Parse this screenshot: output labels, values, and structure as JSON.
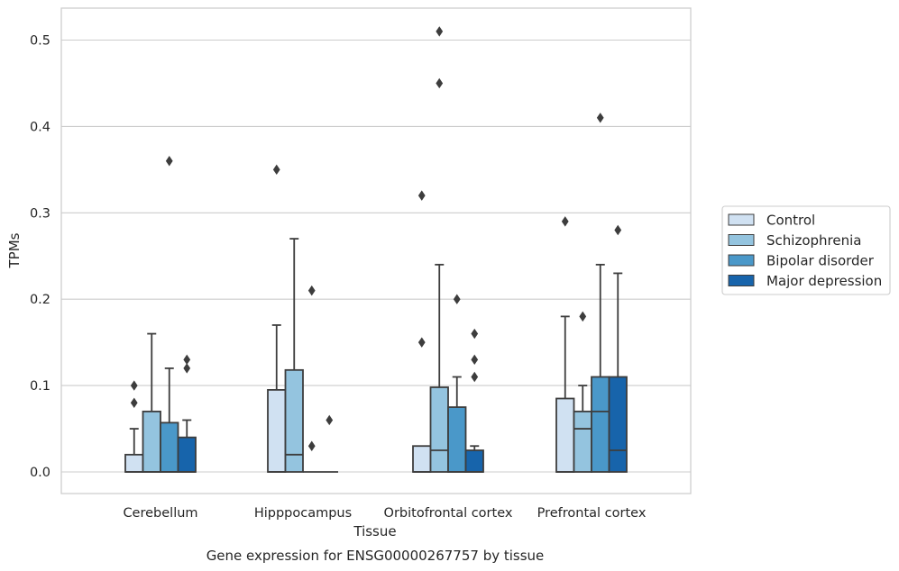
{
  "chart_data": {
    "type": "box",
    "caption": "Gene expression for ENSG00000267757 by tissue",
    "xlabel": "Tissue",
    "ylabel": "TPMs",
    "ylim": [
      -0.025,
      0.54
    ],
    "yticks": [
      0.0,
      0.1,
      0.2,
      0.3,
      0.4,
      0.5
    ],
    "ytick_labels": [
      "0.0",
      "0.1",
      "0.2",
      "0.3",
      "0.4",
      "0.5"
    ],
    "grid": "horizontal",
    "legend_position": "right",
    "categories": [
      "Cerebellum",
      "Hipppocampus",
      "Orbitofrontal cortex",
      "Prefrontal cortex"
    ],
    "series": [
      {
        "name": "Control",
        "color": "#d0e1f2",
        "boxes": [
          {
            "min": 0.0,
            "q1": 0.0,
            "median": 0.0,
            "q3": 0.02,
            "max": 0.05,
            "outliers": [
              0.08,
              0.1
            ]
          },
          {
            "min": 0.0,
            "q1": 0.0,
            "median": 0.0,
            "q3": 0.095,
            "max": 0.17,
            "outliers": [
              0.35
            ]
          },
          {
            "min": 0.0,
            "q1": 0.0,
            "median": 0.0,
            "q3": 0.03,
            "max": 0.03,
            "outliers": [
              0.15,
              0.32
            ]
          },
          {
            "min": 0.0,
            "q1": 0.0,
            "median": 0.0,
            "q3": 0.085,
            "max": 0.18,
            "outliers": [
              0.29
            ]
          }
        ]
      },
      {
        "name": "Schizophrenia",
        "color": "#94c4df",
        "boxes": [
          {
            "min": 0.0,
            "q1": 0.0,
            "median": 0.0,
            "q3": 0.07,
            "max": 0.16,
            "outliers": []
          },
          {
            "min": 0.0,
            "q1": 0.0,
            "median": 0.02,
            "q3": 0.118,
            "max": 0.27,
            "outliers": []
          },
          {
            "min": 0.0,
            "q1": 0.0,
            "median": 0.025,
            "q3": 0.098,
            "max": 0.24,
            "outliers": [
              0.45,
              0.51
            ]
          },
          {
            "min": 0.0,
            "q1": 0.0,
            "median": 0.05,
            "q3": 0.07,
            "max": 0.1,
            "outliers": [
              0.18
            ]
          }
        ]
      },
      {
        "name": "Bipolar disorder",
        "color": "#4a98c9",
        "boxes": [
          {
            "min": 0.0,
            "q1": 0.0,
            "median": 0.0,
            "q3": 0.057,
            "max": 0.12,
            "outliers": [
              0.36
            ]
          },
          {
            "min": 0.0,
            "q1": 0.0,
            "median": 0.0,
            "q3": 0.0,
            "max": 0.0,
            "outliers": [
              0.03,
              0.21
            ]
          },
          {
            "min": 0.0,
            "q1": 0.0,
            "median": 0.0,
            "q3": 0.075,
            "max": 0.11,
            "outliers": [
              0.2
            ]
          },
          {
            "min": 0.0,
            "q1": 0.0,
            "median": 0.07,
            "q3": 0.11,
            "max": 0.24,
            "outliers": [
              0.41
            ]
          }
        ]
      },
      {
        "name": "Major depression",
        "color": "#1764ab",
        "boxes": [
          {
            "min": 0.0,
            "q1": 0.0,
            "median": 0.0,
            "q3": 0.04,
            "max": 0.06,
            "outliers": [
              0.12,
              0.13
            ]
          },
          {
            "min": 0.0,
            "q1": 0.0,
            "median": 0.0,
            "q3": 0.0,
            "max": 0.0,
            "outliers": [
              0.06
            ]
          },
          {
            "min": 0.0,
            "q1": 0.0,
            "median": 0.0,
            "q3": 0.025,
            "max": 0.03,
            "outliers": [
              0.11,
              0.13,
              0.16
            ]
          },
          {
            "min": 0.0,
            "q1": 0.0,
            "median": 0.025,
            "q3": 0.11,
            "max": 0.23,
            "outliers": [
              0.28
            ]
          }
        ]
      }
    ]
  }
}
